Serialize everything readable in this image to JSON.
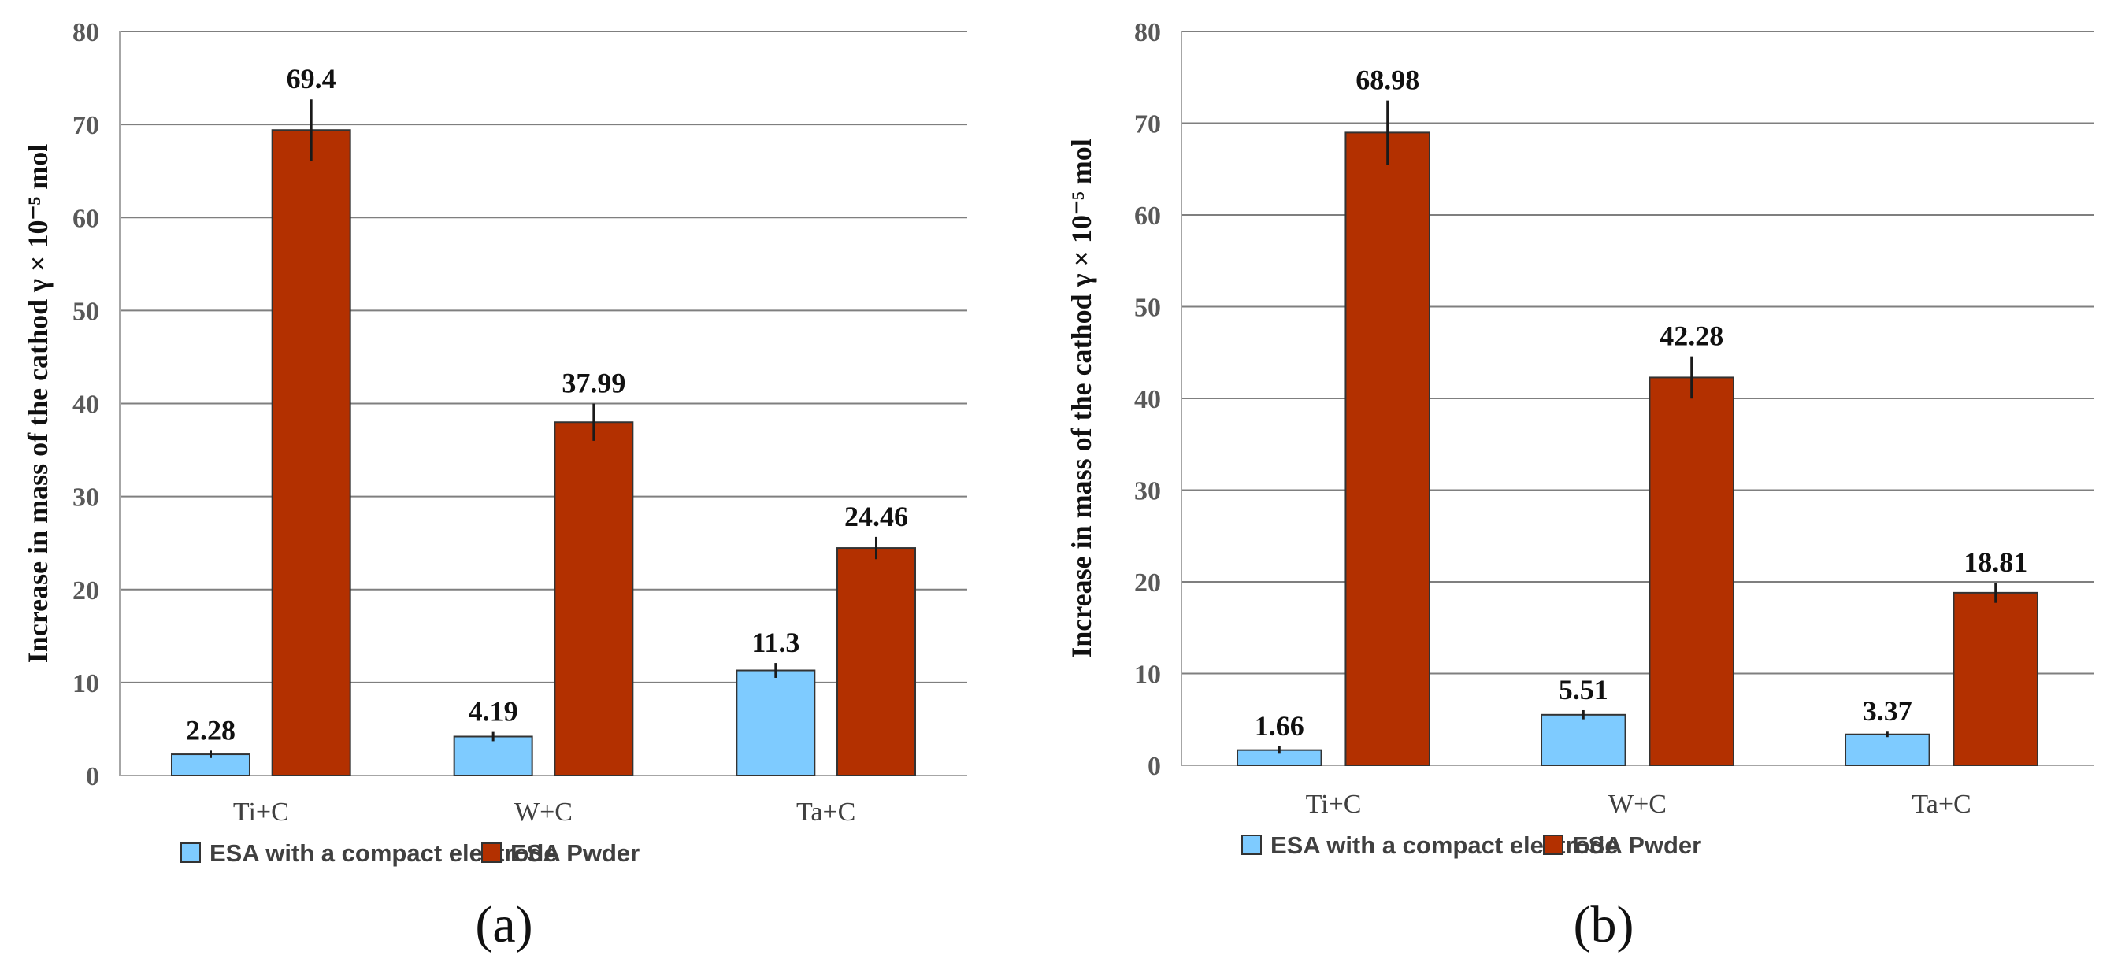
{
  "colors": {
    "compact": "#7ecbff",
    "powder": "#b33000",
    "grid": "#7f7f7f",
    "axis": "#a6a6a6",
    "error": "#1a1a1a"
  },
  "chart_data": [
    {
      "type": "bar",
      "panel_label": "(a)",
      "ylabel": "Increase in mass of the cathod  γ × 10⁻⁵ mol",
      "ylim": [
        0,
        80
      ],
      "yticks": [
        "0",
        "10",
        "20",
        "30",
        "40",
        "50",
        "60",
        "70",
        "80"
      ],
      "categories": [
        "Ti+C",
        "W+C",
        "Ta+C"
      ],
      "series": [
        {
          "name": "ESA with a compact electrode",
          "values": [
            2.28,
            4.19,
            11.3
          ],
          "labels": [
            "2.28",
            "4.19",
            "11.3"
          ],
          "errors": [
            0.4,
            0.5,
            0.8
          ]
        },
        {
          "name": "ESA Pwder",
          "values": [
            69.4,
            37.99,
            24.46
          ],
          "labels": [
            "69.4",
            "37.99",
            "24.46"
          ],
          "errors": [
            3.3,
            2.0,
            1.2
          ]
        }
      ]
    },
    {
      "type": "bar",
      "panel_label": "(b)",
      "ylabel": "Increase in mass of the cathod  γ × 10⁻⁵ mol",
      "ylim": [
        0,
        80
      ],
      "yticks": [
        "0",
        "10",
        "20",
        "30",
        "40",
        "50",
        "60",
        "70",
        "80"
      ],
      "categories": [
        "Ti+C",
        "W+C",
        "Ta+C"
      ],
      "series": [
        {
          "name": "ESA with a compact electrode",
          "values": [
            1.66,
            5.51,
            3.37
          ],
          "labels": [
            "1.66",
            "5.51",
            "3.37"
          ],
          "errors": [
            0.4,
            0.5,
            0.3
          ]
        },
        {
          "name": "ESA Pwder",
          "values": [
            68.98,
            42.28,
            18.81
          ],
          "labels": [
            "68.98",
            "42.28",
            "18.81"
          ],
          "errors": [
            3.5,
            2.3,
            1.1
          ]
        }
      ]
    }
  ]
}
